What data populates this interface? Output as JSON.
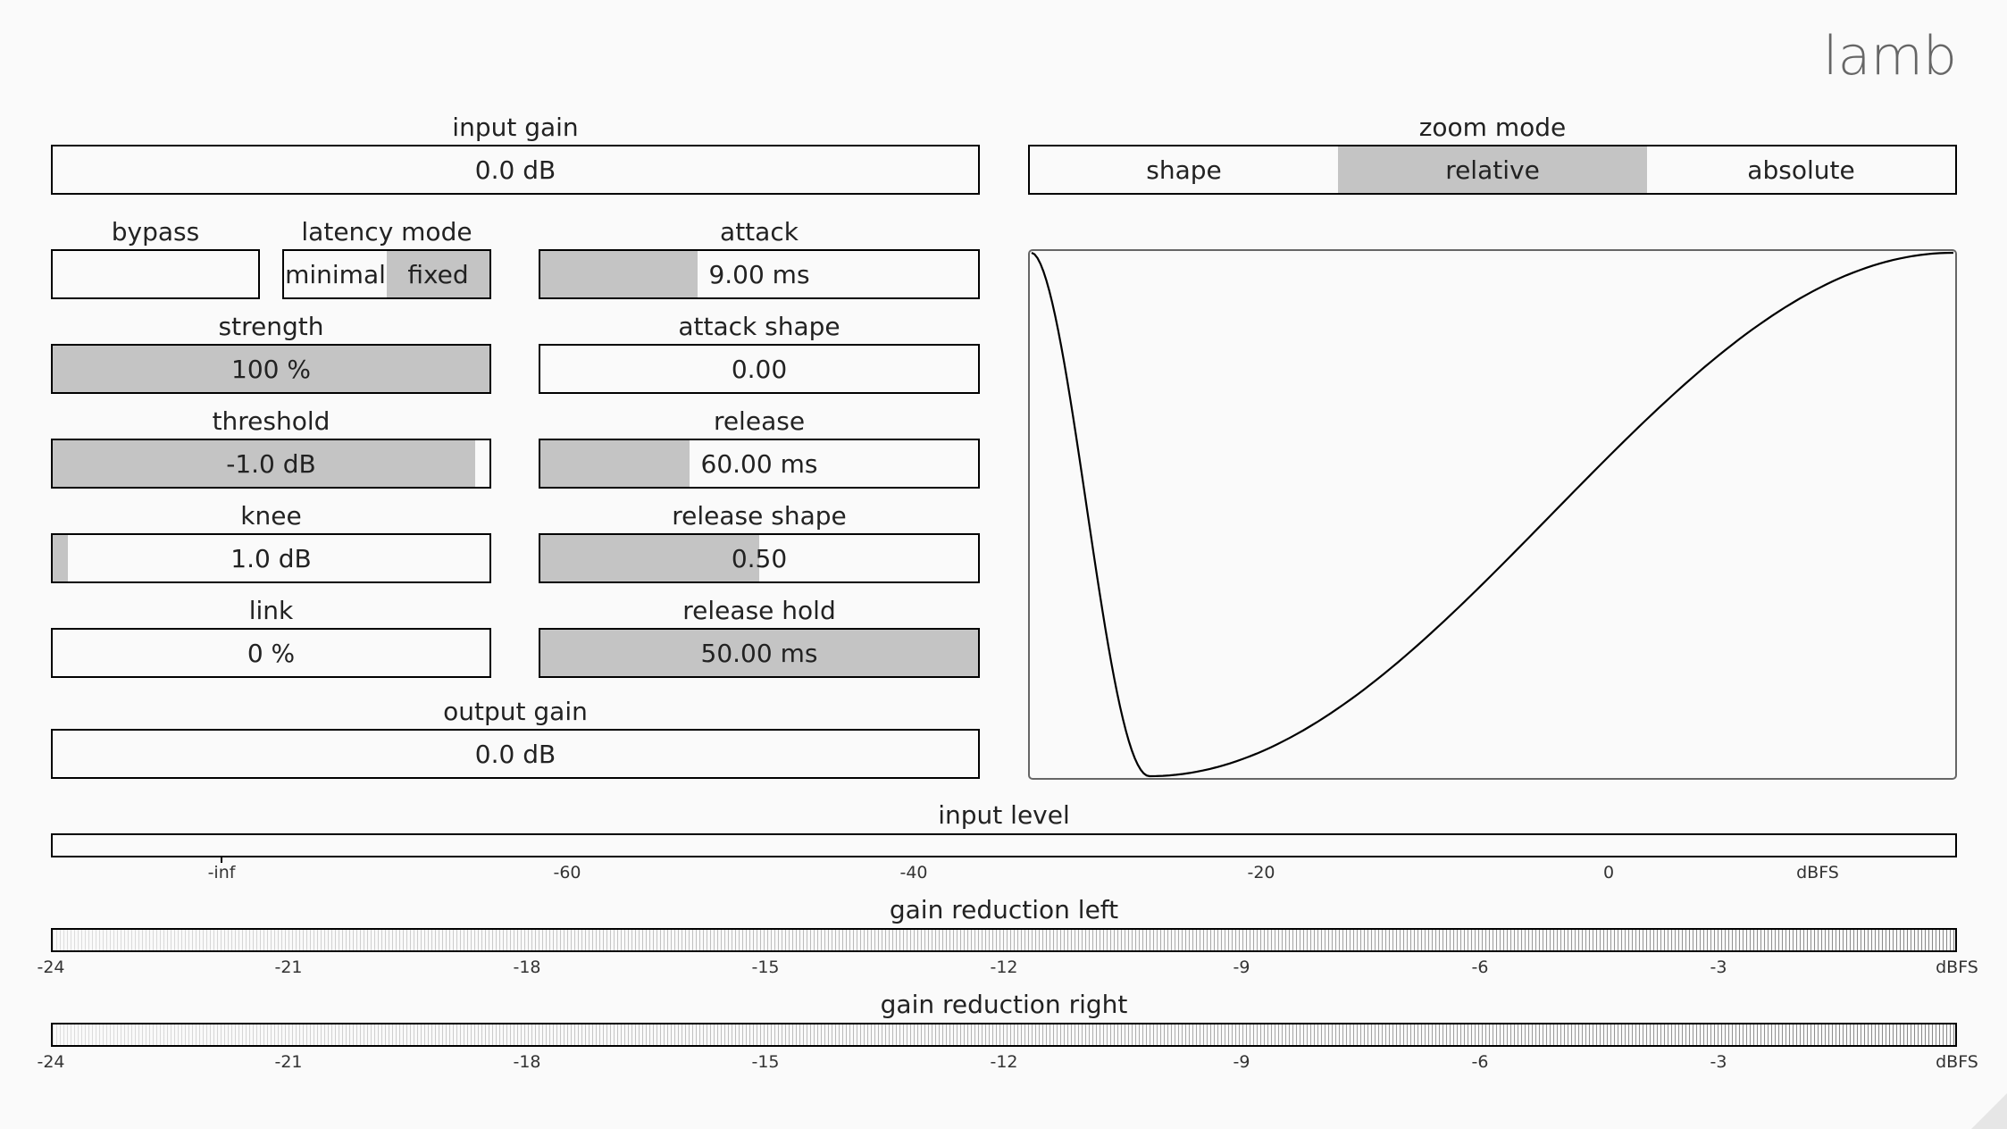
{
  "app": {
    "title": "lamb"
  },
  "input_gain": {
    "label": "input gain",
    "value": "0.0 dB"
  },
  "zoom_mode": {
    "label": "zoom mode",
    "options": [
      "shape",
      "relative",
      "absolute"
    ],
    "selected": "relative"
  },
  "bypass": {
    "label": "bypass"
  },
  "latency_mode": {
    "label": "latency mode",
    "options": [
      "minimal",
      "fixed"
    ],
    "selected": "fixed"
  },
  "attack": {
    "label": "attack",
    "value": "9.00 ms",
    "fill": 0.36
  },
  "strength": {
    "label": "strength",
    "value": "100 %",
    "fill": 1.0
  },
  "attack_shape": {
    "label": "attack shape",
    "value": "0.00",
    "fill": 0.0
  },
  "threshold": {
    "label": "threshold",
    "value": "-1.0 dB",
    "fill": 0.967
  },
  "release": {
    "label": "release",
    "value": "60.00 ms",
    "fill": 0.34
  },
  "knee": {
    "label": "knee",
    "value": "1.0 dB",
    "fill": 0.035
  },
  "release_shape": {
    "label": "release shape",
    "value": "0.50",
    "fill": 0.5
  },
  "link": {
    "label": "link",
    "value": "0 %",
    "fill": 0.0
  },
  "release_hold": {
    "label": "release hold",
    "value": "50.00 ms",
    "fill": 1.0
  },
  "output_gain": {
    "label": "output gain",
    "value": "0.0 dB"
  },
  "input_level": {
    "label": "input level",
    "ticks": [
      "-inf",
      "-60",
      "-40",
      "-20",
      "0",
      "dBFS"
    ]
  },
  "gain_reduction_left": {
    "label": "gain reduction left",
    "ticks": [
      "-24",
      "-21",
      "-18",
      "-15",
      "-12",
      "-9",
      "-6",
      "-3",
      "dBFS"
    ]
  },
  "gain_reduction_right": {
    "label": "gain reduction right",
    "ticks": [
      "-24",
      "-21",
      "-18",
      "-15",
      "-12",
      "-9",
      "-6",
      "-3",
      "dBFS"
    ]
  }
}
